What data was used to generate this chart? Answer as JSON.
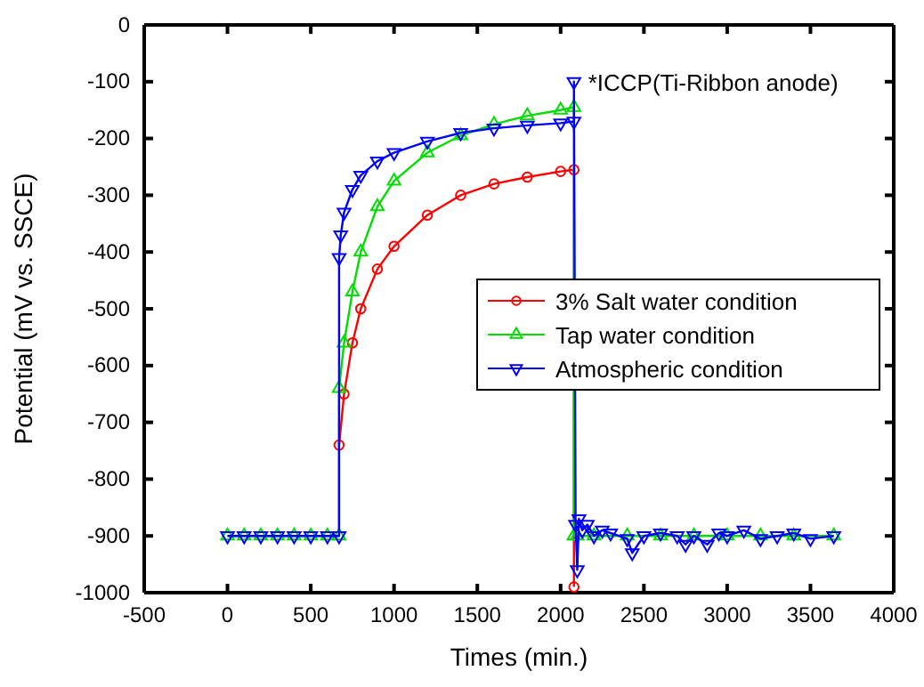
{
  "chart_data": {
    "type": "line",
    "xlabel": "Times (min.)",
    "ylabel": "Potential (mV vs. SSCE)",
    "xlim": [
      -500,
      4000
    ],
    "xticks": [
      -500,
      0,
      500,
      1000,
      1500,
      2000,
      2500,
      3000,
      3500,
      4000
    ],
    "ylim": [
      -1000,
      0
    ],
    "yticks": [
      -1000,
      -900,
      -800,
      -700,
      -600,
      -500,
      -400,
      -300,
      -200,
      -100,
      0
    ],
    "grid": false,
    "legend": "right",
    "line_style": "solid",
    "annotations": [
      {
        "text": "*ICCP(Ti-Ribbon anode)",
        "x": 2080,
        "y": -100
      }
    ],
    "series": [
      {
        "name": "3% Salt water condition",
        "color": "#ff0000",
        "marker": "circle",
        "x": [
          670,
          700,
          750,
          800,
          900,
          1000,
          1200,
          1400,
          1600,
          1800,
          2000,
          2080,
          2080
        ],
        "values": [
          -740,
          -650,
          -560,
          -500,
          -430,
          -390,
          -335,
          -300,
          -280,
          -268,
          -258,
          -255,
          -990
        ]
      },
      {
        "name": "Tap water condition",
        "color": "#00dd00",
        "marker": "triangle",
        "x": [
          0,
          100,
          200,
          300,
          400,
          500,
          600,
          670,
          670,
          700,
          750,
          800,
          900,
          1000,
          1200,
          1400,
          1600,
          1800,
          2000,
          2080,
          2080,
          2100,
          2200,
          2400,
          2600,
          2800,
          3000,
          3200,
          3400,
          3640
        ],
        "values": [
          -900,
          -900,
          -900,
          -900,
          -900,
          -900,
          -900,
          -900,
          -640,
          -560,
          -470,
          -400,
          -320,
          -275,
          -225,
          -195,
          -175,
          -160,
          -150,
          -145,
          -900,
          -900,
          -900,
          -900,
          -900,
          -900,
          -900,
          -900,
          -900,
          -900
        ]
      },
      {
        "name": "Atmospheric condition",
        "color": "#0000ff",
        "marker": "triangle-down",
        "x": [
          0,
          100,
          200,
          300,
          400,
          500,
          600,
          670,
          670,
          680,
          700,
          750,
          800,
          900,
          1000,
          1200,
          1400,
          1600,
          1800,
          2000,
          2080,
          2080,
          2090,
          2100,
          2110,
          2130,
          2160,
          2200,
          2250,
          2300,
          2400,
          2430,
          2500,
          2600,
          2700,
          2750,
          2800,
          2880,
          2950,
          3000,
          3100,
          3200,
          3300,
          3400,
          3500,
          3640
        ],
        "values": [
          -900,
          -900,
          -900,
          -900,
          -900,
          -900,
          -900,
          -900,
          -410,
          -370,
          -330,
          -290,
          -265,
          -240,
          -225,
          -205,
          -190,
          -182,
          -177,
          -173,
          -170,
          -100,
          -880,
          -960,
          -870,
          -890,
          -880,
          -900,
          -890,
          -895,
          -905,
          -930,
          -900,
          -895,
          -900,
          -915,
          -900,
          -915,
          -895,
          -900,
          -890,
          -905,
          -900,
          -895,
          -905,
          -900
        ]
      }
    ]
  }
}
